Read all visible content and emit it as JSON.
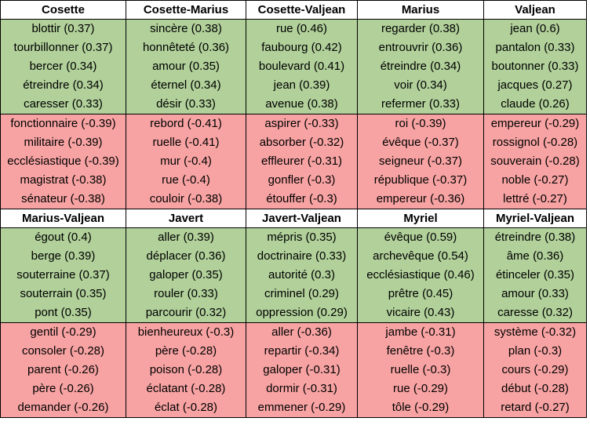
{
  "colors": {
    "positive": "#b1d09a",
    "negative": "#f8a3a3",
    "header": "#ffffff",
    "border": "#000000"
  },
  "blocks": [
    {
      "headers": [
        "Cosette",
        "Cosette-Marius",
        "Cosette-Valjean",
        "Marius",
        "Valjean"
      ],
      "positive": [
        [
          "blottir (0.37)",
          "tourbillonner (0.37)",
          "bercer (0.34)",
          "étreindre (0.34)",
          "caresser (0.33)"
        ],
        [
          "sincère (0.38)",
          "honnêteté (0.36)",
          "amour (0.35)",
          "éternel (0.34)",
          "désir (0.33)"
        ],
        [
          "rue (0.46)",
          "faubourg (0.42)",
          "boulevard (0.41)",
          "jean (0.39)",
          "avenue (0.38)"
        ],
        [
          "regarder (0.38)",
          "entrouvrir (0.36)",
          "étreindre (0.34)",
          "voir (0.34)",
          "refermer (0.33)"
        ],
        [
          "jean (0.6)",
          "pantalon (0.33)",
          "boutonner (0.33)",
          "jacques (0.27)",
          "claude (0.26)"
        ]
      ],
      "negative": [
        [
          "fonctionnaire (-0.39)",
          "militaire (-0.39)",
          "ecclésiastique (-0.39)",
          "magistrat (-0.38)",
          "sénateur (-0.38)"
        ],
        [
          "rebord (-0.41)",
          "ruelle (-0.41)",
          "mur (-0.4)",
          "rue (-0.4)",
          "couloir (-0.38)"
        ],
        [
          "aspirer (-0.33)",
          "absorber (-0.32)",
          "effleurer (-0.31)",
          "gonfler (-0.3)",
          "étouffer (-0.3)"
        ],
        [
          "roi (-0.39)",
          "évêque (-0.37)",
          "seigneur (-0.37)",
          "république (-0.37)",
          "empereur (-0.36)"
        ],
        [
          "empereur (-0.29)",
          "rossignol (-0.28)",
          "souverain (-0.28)",
          "noble (-0.27)",
          "lettré (-0.27)"
        ]
      ]
    },
    {
      "headers": [
        "Marius-Valjean",
        "Javert",
        "Javert-Valjean",
        "Myriel",
        "Myriel-Valjean"
      ],
      "positive": [
        [
          "égout (0.4)",
          "berge (0.39)",
          "souterraine (0.37)",
          "souterrain (0.35)",
          "pont (0.35)"
        ],
        [
          "aller (0.39)",
          "déplacer (0.36)",
          "galoper (0.35)",
          "rouler (0.33)",
          "parcourir (0.32)"
        ],
        [
          "mépris (0.35)",
          "doctrinaire (0.33)",
          "autorité (0.3)",
          "criminel (0.29)",
          "oppression (0.29)"
        ],
        [
          "évêque (0.59)",
          "archevêque (0.54)",
          "ecclésiastique (0.46)",
          "prêtre (0.45)",
          "vicaire (0.43)"
        ],
        [
          "étreindre (0.38)",
          "âme (0.36)",
          "étinceler (0.35)",
          "amour (0.33)",
          "caresse (0.32)"
        ]
      ],
      "negative": [
        [
          "gentil (-0.29)",
          "consoler (-0.28)",
          "parent (-0.26)",
          "père (-0.26)",
          "demander (-0.26)"
        ],
        [
          "bienheureux (-0.3)",
          "père (-0.28)",
          "poison (-0.28)",
          "éclatant (-0.28)",
          "éclat (-0.28)"
        ],
        [
          "aller (-0.36)",
          "repartir (-0.34)",
          "galoper (-0.31)",
          "dormir (-0.31)",
          "emmener (-0.29)"
        ],
        [
          "jambe (-0.31)",
          "fenêtre (-0.3)",
          "ruelle (-0.3)",
          "rue (-0.29)",
          "tôle (-0.29)"
        ],
        [
          "système (-0.32)",
          "plan (-0.3)",
          "cours (-0.29)",
          "début (-0.28)",
          "retard (-0.27)"
        ]
      ]
    }
  ]
}
